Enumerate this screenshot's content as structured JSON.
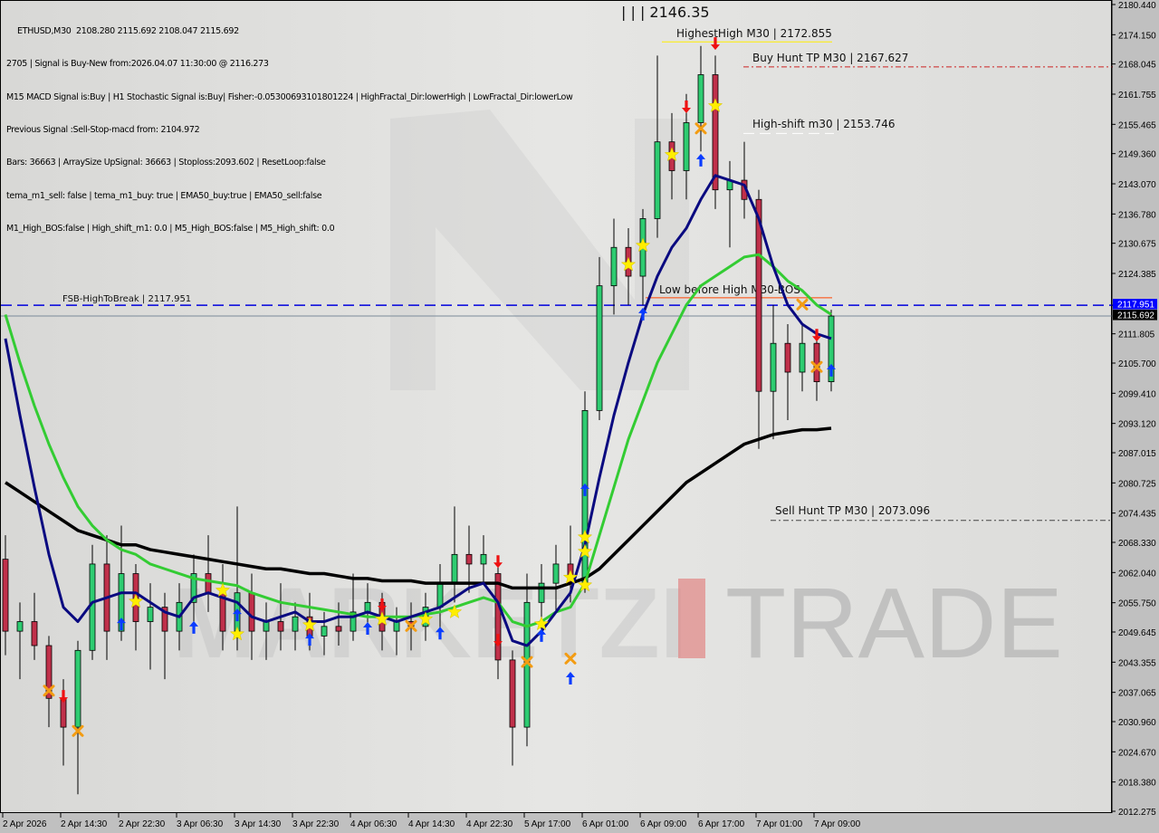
{
  "header": {
    "symbol_line": "ETHUSD,M30  2108.280 2115.692 2108.047 2115.692",
    "lines": [
      "2705 | Signal is Buy-New from:2026.04.07 11:30:00 @ 2116.273",
      "M15 MACD Signal is:Buy | H1 Stochastic Signal is:Buy| Fisher:-0.05300693101801224 | HighFractal_Dir:lowerHigh | LowFractal_Dir:lowerLow",
      "Previous Signal :Sell-Stop-macd from: 2104.972",
      "Bars: 36663 | ArraySize UpSignal: 36663 | Stoploss:2093.602 | ResetLoop:false",
      "tema_m1_sell: false | tema_m1_buy: true | EMA50_buy:true | EMA50_sell:false",
      "M1_High_BOS:false | High_shift_m1: 0.0 | M5_High_BOS:false | M5_High_shift: 0.0"
    ]
  },
  "watermark": {
    "text_left": "MARKETZI",
    "text_right": "TRADE",
    "accent": "#e03a3a"
  },
  "chart_data": {
    "type": "candlestick",
    "symbol": "ETHUSD",
    "timeframe": "M30",
    "ylim": [
      2012.275,
      2180.44
    ],
    "y_ticks": [
      2180.44,
      2174.15,
      2168.045,
      2161.755,
      2155.465,
      2149.36,
      2143.07,
      2136.78,
      2130.675,
      2124.385,
      2111.805,
      2105.7,
      2099.41,
      2093.12,
      2087.015,
      2080.725,
      2074.435,
      2068.33,
      2062.04,
      2055.75,
      2049.645,
      2043.355,
      2037.065,
      2030.96,
      2024.67,
      2018.38,
      2012.275
    ],
    "x_ticks": [
      "2 Apr 2026",
      "2 Apr 14:30",
      "2 Apr 22:30",
      "3 Apr 06:30",
      "3 Apr 14:30",
      "3 Apr 22:30",
      "4 Apr 06:30",
      "4 Apr 14:30",
      "4 Apr 22:30",
      "5 Apr 17:00",
      "6 Apr 01:00",
      "6 Apr 09:00",
      "6 Apr 17:00",
      "7 Apr 01:00",
      "7 Apr 09:00"
    ],
    "colors": {
      "bull": "#2ecc71",
      "bear": "#c0304a",
      "ema": "#33cc33",
      "tema": "#0a0a80",
      "sma": "#000000"
    },
    "candles": [
      {
        "t": "04-02 06:30",
        "o": 2065,
        "h": 2070,
        "l": 2045,
        "c": 2050
      },
      {
        "t": "04-02 08:30",
        "o": 2050,
        "h": 2056,
        "l": 2040,
        "c": 2052
      },
      {
        "t": "04-02 10:30",
        "o": 2052,
        "h": 2058,
        "l": 2044,
        "c": 2047
      },
      {
        "t": "04-02 12:30",
        "o": 2047,
        "h": 2049,
        "l": 2030,
        "c": 2036
      },
      {
        "t": "04-02 14:30",
        "o": 2036,
        "h": 2040,
        "l": 2022,
        "c": 2030
      },
      {
        "t": "04-02 16:30",
        "o": 2030,
        "h": 2048,
        "l": 2016,
        "c": 2046
      },
      {
        "t": "04-02 18:30",
        "o": 2046,
        "h": 2068,
        "l": 2044,
        "c": 2064
      },
      {
        "t": "04-02 20:30",
        "o": 2064,
        "h": 2070,
        "l": 2044,
        "c": 2050
      },
      {
        "t": "04-02 22:30",
        "o": 2050,
        "h": 2072,
        "l": 2048,
        "c": 2062
      },
      {
        "t": "04-03 00:30",
        "o": 2062,
        "h": 2064,
        "l": 2046,
        "c": 2052
      },
      {
        "t": "04-03 02:30",
        "o": 2052,
        "h": 2060,
        "l": 2042,
        "c": 2055
      },
      {
        "t": "04-03 04:30",
        "o": 2055,
        "h": 2058,
        "l": 2040,
        "c": 2050
      },
      {
        "t": "04-03 06:30",
        "o": 2050,
        "h": 2060,
        "l": 2046,
        "c": 2056
      },
      {
        "t": "04-03 08:30",
        "o": 2056,
        "h": 2066,
        "l": 2050,
        "c": 2062
      },
      {
        "t": "04-03 10:30",
        "o": 2062,
        "h": 2070,
        "l": 2054,
        "c": 2058
      },
      {
        "t": "04-03 12:30",
        "o": 2058,
        "h": 2064,
        "l": 2046,
        "c": 2050
      },
      {
        "t": "04-03 14:30",
        "o": 2050,
        "h": 2076,
        "l": 2046,
        "c": 2058
      },
      {
        "t": "04-03 16:30",
        "o": 2058,
        "h": 2062,
        "l": 2044,
        "c": 2050
      },
      {
        "t": "04-03 18:30",
        "o": 2050,
        "h": 2056,
        "l": 2044,
        "c": 2052
      },
      {
        "t": "04-03 20:30",
        "o": 2052,
        "h": 2060,
        "l": 2046,
        "c": 2050
      },
      {
        "t": "04-03 22:30",
        "o": 2050,
        "h": 2056,
        "l": 2046,
        "c": 2053
      },
      {
        "t": "04-04 00:30",
        "o": 2053,
        "h": 2058,
        "l": 2046,
        "c": 2049
      },
      {
        "t": "04-04 02:30",
        "o": 2049,
        "h": 2054,
        "l": 2045,
        "c": 2051
      },
      {
        "t": "04-04 04:30",
        "o": 2051,
        "h": 2056,
        "l": 2047,
        "c": 2050
      },
      {
        "t": "04-04 06:30",
        "o": 2050,
        "h": 2062,
        "l": 2048,
        "c": 2054
      },
      {
        "t": "04-04 08:30",
        "o": 2054,
        "h": 2060,
        "l": 2050,
        "c": 2056
      },
      {
        "t": "04-04 10:30",
        "o": 2056,
        "h": 2058,
        "l": 2046,
        "c": 2050
      },
      {
        "t": "04-04 12:30",
        "o": 2050,
        "h": 2055,
        "l": 2045,
        "c": 2052
      },
      {
        "t": "04-04 14:30",
        "o": 2052,
        "h": 2056,
        "l": 2046,
        "c": 2051
      },
      {
        "t": "04-04 16:30",
        "o": 2051,
        "h": 2058,
        "l": 2048,
        "c": 2055
      },
      {
        "t": "04-04 18:30",
        "o": 2055,
        "h": 2064,
        "l": 2050,
        "c": 2060
      },
      {
        "t": "04-04 20:30",
        "o": 2060,
        "h": 2076,
        "l": 2056,
        "c": 2066
      },
      {
        "t": "04-04 22:30",
        "o": 2066,
        "h": 2072,
        "l": 2058,
        "c": 2064
      },
      {
        "t": "04-05 11:00",
        "o": 2064,
        "h": 2070,
        "l": 2060,
        "c": 2066
      },
      {
        "t": "04-05 13:00",
        "o": 2062,
        "h": 2064,
        "l": 2040,
        "c": 2044
      },
      {
        "t": "04-05 15:00",
        "o": 2044,
        "h": 2046,
        "l": 2022,
        "c": 2030
      },
      {
        "t": "04-05 17:00",
        "o": 2030,
        "h": 2062,
        "l": 2026,
        "c": 2056
      },
      {
        "t": "04-05 19:00",
        "o": 2056,
        "h": 2064,
        "l": 2050,
        "c": 2060
      },
      {
        "t": "04-05 21:00",
        "o": 2060,
        "h": 2068,
        "l": 2054,
        "c": 2064
      },
      {
        "t": "04-05 23:00",
        "o": 2064,
        "h": 2072,
        "l": 2056,
        "c": 2060
      },
      {
        "t": "04-06 01:00",
        "o": 2060,
        "h": 2100,
        "l": 2058,
        "c": 2096
      },
      {
        "t": "04-06 03:00",
        "o": 2096,
        "h": 2128,
        "l": 2094,
        "c": 2122
      },
      {
        "t": "04-06 05:00",
        "o": 2122,
        "h": 2136,
        "l": 2116,
        "c": 2130
      },
      {
        "t": "04-06 07:00",
        "o": 2130,
        "h": 2134,
        "l": 2118,
        "c": 2124
      },
      {
        "t": "04-06 09:00",
        "o": 2124,
        "h": 2138,
        "l": 2118,
        "c": 2136
      },
      {
        "t": "04-06 11:00",
        "o": 2136,
        "h": 2170,
        "l": 2132,
        "c": 2152
      },
      {
        "t": "04-06 13:00",
        "o": 2152,
        "h": 2158,
        "l": 2140,
        "c": 2146
      },
      {
        "t": "04-06 15:00",
        "o": 2146,
        "h": 2162,
        "l": 2140,
        "c": 2156
      },
      {
        "t": "04-06 17:00",
        "o": 2156,
        "h": 2172,
        "l": 2150,
        "c": 2166
      },
      {
        "t": "04-06 19:00",
        "o": 2166,
        "h": 2170,
        "l": 2138,
        "c": 2142
      },
      {
        "t": "04-06 21:00",
        "o": 2142,
        "h": 2148,
        "l": 2130,
        "c": 2144
      },
      {
        "t": "04-06 23:00",
        "o": 2144,
        "h": 2152,
        "l": 2136,
        "c": 2140
      },
      {
        "t": "04-07 01:00",
        "o": 2140,
        "h": 2142,
        "l": 2088,
        "c": 2100
      },
      {
        "t": "04-07 03:00",
        "o": 2100,
        "h": 2118,
        "l": 2090,
        "c": 2110
      },
      {
        "t": "04-07 05:00",
        "o": 2110,
        "h": 2114,
        "l": 2094,
        "c": 2104
      },
      {
        "t": "04-07 07:00",
        "o": 2104,
        "h": 2114,
        "l": 2100,
        "c": 2110
      },
      {
        "t": "04-07 09:00",
        "o": 2110,
        "h": 2112,
        "l": 2098,
        "c": 2102
      },
      {
        "t": "04-07 11:00",
        "o": 2102,
        "h": 2117,
        "l": 2100,
        "c": 2115.692
      }
    ],
    "sma": [
      2081,
      2079,
      2077,
      2075,
      2073,
      2071,
      2070,
      2069,
      2068,
      2068,
      2067,
      2066.5,
      2066,
      2065.5,
      2065,
      2064.5,
      2064,
      2063.5,
      2063,
      2063,
      2062.5,
      2062,
      2062,
      2061.5,
      2061,
      2061,
      2060.5,
      2060.5,
      2060.5,
      2060,
      2060,
      2060,
      2060,
      2060,
      2060,
      2059,
      2059,
      2059,
      2059,
      2060,
      2061,
      2063,
      2066,
      2069,
      2072,
      2075,
      2078,
      2081,
      2083,
      2085,
      2087,
      2089,
      2090,
      2091,
      2091.5,
      2092,
      2092,
      2092.3
    ],
    "ema": [
      2116,
      2106,
      2097,
      2089,
      2082,
      2076,
      2072,
      2069,
      2067,
      2066,
      2064,
      2063,
      2062,
      2061,
      2060.5,
      2060,
      2059.5,
      2058,
      2057,
      2056,
      2055.5,
      2055,
      2054.5,
      2054,
      2053.5,
      2053,
      2053,
      2053,
      2053,
      2053.5,
      2054,
      2055,
      2056,
      2057,
      2056,
      2052,
      2051,
      2052,
      2054,
      2055,
      2060,
      2070,
      2080,
      2090,
      2098,
      2106,
      2112,
      2118,
      2122,
      2124,
      2126,
      2128,
      2128.5,
      2126,
      2123,
      2121,
      2118,
      2116
    ],
    "tema": [
      2111,
      2095,
      2080,
      2066,
      2055,
      2052,
      2056,
      2057,
      2058,
      2058,
      2056,
      2054,
      2053,
      2057,
      2058,
      2057,
      2056,
      2053,
      2052,
      2053,
      2054,
      2052,
      2052,
      2053,
      2053,
      2054,
      2053,
      2052,
      2053,
      2054,
      2055,
      2057,
      2059,
      2060,
      2056,
      2048,
      2047,
      2050,
      2054,
      2058,
      2068,
      2082,
      2095,
      2106,
      2116,
      2124,
      2130,
      2134,
      2140,
      2145,
      2144,
      2143,
      2136,
      2126,
      2118,
      2114,
      2112,
      2111
    ],
    "markers": [
      {
        "type": "star",
        "t": "04-03 00:30",
        "p": 2056.2
      },
      {
        "type": "star",
        "t": "04-03 12:30",
        "p": 2058.5
      },
      {
        "type": "star",
        "t": "04-03 14:30",
        "p": 2049.4
      },
      {
        "type": "star",
        "t": "04-04 00:30",
        "p": 2051.3
      },
      {
        "type": "star",
        "t": "04-04 10:30",
        "p": 2052.5
      },
      {
        "type": "star",
        "t": "04-04 16:30",
        "p": 2052.5
      },
      {
        "type": "star",
        "t": "04-04 20:30",
        "p": 2054
      },
      {
        "type": "star",
        "t": "04-05 19:00",
        "p": 2051.5
      },
      {
        "type": "star",
        "t": "04-05 23:00",
        "p": 2061.2
      },
      {
        "type": "star",
        "t": "04-06 01:00",
        "p": 2059.6
      },
      {
        "type": "star",
        "t": "04-06 01:00",
        "p": 2066.6
      },
      {
        "type": "star",
        "t": "04-06 01:00",
        "p": 2069.6
      },
      {
        "type": "star",
        "t": "04-06 07:00",
        "p": 2126.4
      },
      {
        "type": "star",
        "t": "04-06 09:00",
        "p": 2130.4
      },
      {
        "type": "star",
        "t": "04-06 13:00",
        "p": 2149.3
      },
      {
        "type": "star",
        "t": "04-06 19:00",
        "p": 2159.5
      },
      {
        "type": "buy",
        "t": "04-02 22:30",
        "p": 2051.5
      },
      {
        "type": "buy",
        "t": "04-03 08:30",
        "p": 2050.8
      },
      {
        "type": "buy",
        "t": "04-03 14:30",
        "p": 2053.4
      },
      {
        "type": "buy",
        "t": "04-04 00:30",
        "p": 2048.3
      },
      {
        "type": "buy",
        "t": "04-04 08:30",
        "p": 2050.6
      },
      {
        "type": "buy",
        "t": "04-04 18:30",
        "p": 2049.6
      },
      {
        "type": "buy",
        "t": "04-05 19:00",
        "p": 2049.1
      },
      {
        "type": "buy",
        "t": "04-05 23:00",
        "p": 2040.2
      },
      {
        "type": "buy",
        "t": "04-06 01:00",
        "p": 2079.5
      },
      {
        "type": "buy",
        "t": "04-06 09:00",
        "p": 2116.1
      },
      {
        "type": "buy",
        "t": "04-06 17:00",
        "p": 2148.2
      },
      {
        "type": "buy",
        "t": "04-07 11:00",
        "p": 2104.4
      },
      {
        "type": "sell",
        "t": "04-02 14:30",
        "p": 2036.4
      },
      {
        "type": "sell",
        "t": "04-04 10:30",
        "p": 2055.5
      },
      {
        "type": "sell",
        "t": "04-05 13:00",
        "p": 2064.5
      },
      {
        "type": "sell",
        "t": "04-05 13:00",
        "p": 2048.1
      },
      {
        "type": "sell",
        "t": "04-06 15:00",
        "p": 2159.3
      },
      {
        "type": "sell",
        "t": "04-06 19:00",
        "p": 2172.5
      },
      {
        "type": "sell",
        "t": "04-07 09:00",
        "p": 2111.7
      },
      {
        "type": "exit",
        "t": "04-02 12:30",
        "p": 2037.6
      },
      {
        "type": "exit",
        "t": "04-02 16:30",
        "p": 2029.2
      },
      {
        "type": "exit",
        "t": "04-04 14:30",
        "p": 2051.1
      },
      {
        "type": "exit",
        "t": "04-05 17:00",
        "p": 2043.6
      },
      {
        "type": "exit",
        "t": "04-05 23:00",
        "p": 2044.3
      },
      {
        "type": "exit",
        "t": "04-06 17:00",
        "p": 2154.8
      },
      {
        "type": "exit",
        "t": "04-07 07:00",
        "p": 2118.1
      },
      {
        "type": "exit",
        "t": "04-07 09:00",
        "p": 2105.1
      }
    ],
    "levels": [
      {
        "label": "FSB-HighToBreak | 2117.951",
        "price": 2117.951,
        "color": "#0000dd",
        "style": "dashed",
        "badge": "2117.951",
        "badge_color": "#0000ff"
      },
      {
        "label": "",
        "price": 2115.692,
        "color": "#7a8a99",
        "style": "solid",
        "badge": "2115.692",
        "badge_color": "#000000"
      },
      {
        "label": "HighestHigh   M30 | 2172.855",
        "price": 2172.855,
        "color": "#ffee00",
        "style": "solid"
      },
      {
        "label": "Buy Hunt TP M30 | 2167.627",
        "price": 2167.627,
        "color": "#cc2222",
        "style": "dashdot"
      },
      {
        "label": "High-shift m30 | 2153.746",
        "price": 2153.746,
        "color": "#ffffff",
        "style": "dashed"
      },
      {
        "label": "Low before High   M30-BOS",
        "price": 2119.5,
        "color": "#ff4400",
        "style": "solid"
      },
      {
        "label": "Sell Hunt TP M30 | 2073.096",
        "price": 2073.096,
        "color": "#444444",
        "style": "dashdot"
      }
    ],
    "annotation_top": "| | | 2146.35"
  }
}
